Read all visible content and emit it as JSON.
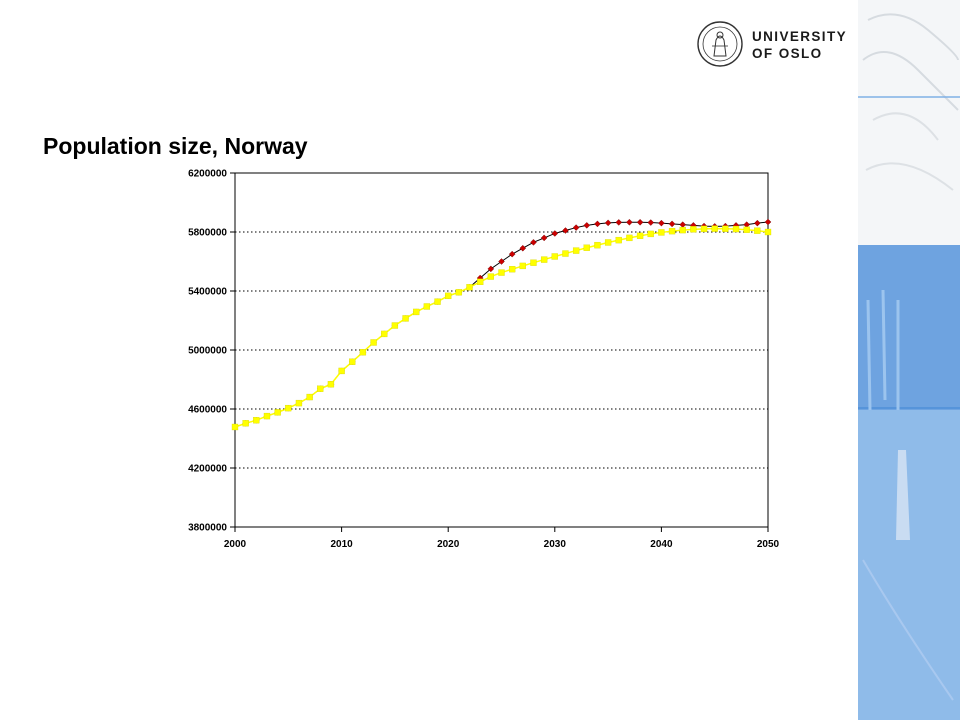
{
  "header": {
    "title": "Population size, Norway",
    "logo": {
      "line1": "UNIVERSITY",
      "line2": "OF OSLO",
      "seal": "university-seal-icon"
    }
  },
  "colors": {
    "series_red": "#cc0000",
    "series_yellow": "#ffff00",
    "deco_blue": "#7fb0e6"
  },
  "chart_data": {
    "type": "line",
    "title": "Population size, Norway",
    "xlabel": "",
    "ylabel": "",
    "xlim": [
      2000,
      2050
    ],
    "ylim": [
      3800000,
      6200000
    ],
    "x_ticks": [
      2000,
      2010,
      2020,
      2030,
      2040,
      2050
    ],
    "y_ticks": [
      3800000,
      4200000,
      4600000,
      5000000,
      5400000,
      5800000,
      6200000
    ],
    "grid": "horizontal dotted",
    "legend": "none",
    "series": [
      {
        "color": "#cc0000",
        "marker": "diamond",
        "x": [
          2000,
          2001,
          2002,
          2003,
          2004,
          2005,
          2006,
          2007,
          2008,
          2009,
          2010,
          2011,
          2012,
          2013,
          2014,
          2015,
          2016,
          2017,
          2018,
          2019,
          2020,
          2021,
          2022,
          2023,
          2024,
          2025,
          2026,
          2027,
          2028,
          2029,
          2030,
          2031,
          2032,
          2033,
          2034,
          2035,
          2036,
          2037,
          2038,
          2039,
          2040,
          2041,
          2042,
          2043,
          2044,
          2045,
          2046,
          2047,
          2048,
          2049,
          2050
        ],
        "values": [
          4478000,
          4503000,
          4524000,
          4552000,
          4577000,
          4606000,
          4640000,
          4681000,
          4737000,
          4768000,
          4858000,
          4920000,
          4985000,
          5051000,
          5109000,
          5166000,
          5214000,
          5258000,
          5295000,
          5328000,
          5367000,
          5391000,
          5425000,
          5488000,
          5550000,
          5600000,
          5650000,
          5690000,
          5730000,
          5760000,
          5790000,
          5810000,
          5830000,
          5845000,
          5855000,
          5862000,
          5865000,
          5866000,
          5866000,
          5864000,
          5860000,
          5855000,
          5850000,
          5845000,
          5840000,
          5838000,
          5840000,
          5845000,
          5850000,
          5860000,
          5868000
        ]
      },
      {
        "color": "#ffff00",
        "marker": "square",
        "x": [
          2000,
          2001,
          2002,
          2003,
          2004,
          2005,
          2006,
          2007,
          2008,
          2009,
          2010,
          2011,
          2012,
          2013,
          2014,
          2015,
          2016,
          2017,
          2018,
          2019,
          2020,
          2021,
          2022,
          2023,
          2024,
          2025,
          2026,
          2027,
          2028,
          2029,
          2030,
          2031,
          2032,
          2033,
          2034,
          2035,
          2036,
          2037,
          2038,
          2039,
          2040,
          2041,
          2042,
          2043,
          2044,
          2045,
          2046,
          2047,
          2048,
          2049,
          2050
        ],
        "values": [
          4478000,
          4503000,
          4524000,
          4552000,
          4577000,
          4606000,
          4640000,
          4681000,
          4737000,
          4768000,
          4858000,
          4920000,
          4985000,
          5051000,
          5109000,
          5166000,
          5214000,
          5258000,
          5295000,
          5328000,
          5367000,
          5391000,
          5425000,
          5462000,
          5498000,
          5525000,
          5548000,
          5570000,
          5592000,
          5613000,
          5634000,
          5654000,
          5674000,
          5693000,
          5711000,
          5729000,
          5745000,
          5760000,
          5774000,
          5787000,
          5797000,
          5806000,
          5813000,
          5818000,
          5821000,
          5823000,
          5822000,
          5820000,
          5815000,
          5809000,
          5800000
        ]
      }
    ]
  }
}
